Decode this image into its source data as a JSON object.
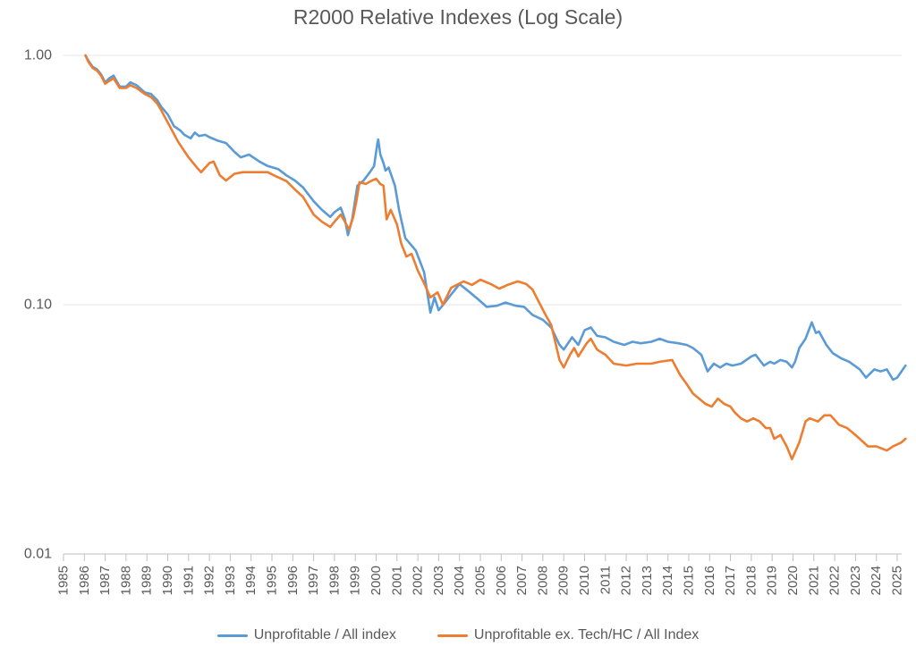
{
  "chart_data": {
    "type": "line",
    "title": "R2000 Relative Indexes (Log Scale)",
    "y_scale": "log",
    "ylim": [
      0.01,
      1.0
    ],
    "xlim": [
      1985,
      2025
    ],
    "grid": "horizontal",
    "legend_position": "bottom",
    "text_color": "#595959",
    "gridline_color": "#E4E6E8",
    "axis_color": "#BFBFBF",
    "y_ticks": [
      {
        "label": "1.00",
        "value": 1.0
      },
      {
        "label": "0.10",
        "value": 0.1
      },
      {
        "label": "0.01",
        "value": 0.01
      }
    ],
    "x_ticks": [
      "1985",
      "1986",
      "1987",
      "1988",
      "1989",
      "1990",
      "1991",
      "1992",
      "1993",
      "1994",
      "1995",
      "1996",
      "1997",
      "1998",
      "1999",
      "2000",
      "2001",
      "2002",
      "2003",
      "2004",
      "2005",
      "2006",
      "2007",
      "2008",
      "2009",
      "2010",
      "2011",
      "2012",
      "2013",
      "2014",
      "2015",
      "2016",
      "2017",
      "2018",
      "2019",
      "2020",
      "2021",
      "2022",
      "2023",
      "2024",
      "2025"
    ],
    "series": [
      {
        "name": "Unprofitable / All index",
        "color": "#5B9BD5",
        "points": [
          [
            1986.05,
            1.0
          ],
          [
            1986.2,
            0.95
          ],
          [
            1986.4,
            0.9
          ],
          [
            1986.6,
            0.88
          ],
          [
            1986.8,
            0.84
          ],
          [
            1987.0,
            0.78
          ],
          [
            1987.2,
            0.81
          ],
          [
            1987.4,
            0.83
          ],
          [
            1987.7,
            0.75
          ],
          [
            1988.0,
            0.75
          ],
          [
            1988.2,
            0.78
          ],
          [
            1988.5,
            0.76
          ],
          [
            1988.9,
            0.71
          ],
          [
            1989.2,
            0.7
          ],
          [
            1989.5,
            0.66
          ],
          [
            1989.7,
            0.62
          ],
          [
            1990.0,
            0.58
          ],
          [
            1990.3,
            0.52
          ],
          [
            1990.6,
            0.5
          ],
          [
            1990.8,
            0.48
          ],
          [
            1991.1,
            0.465
          ],
          [
            1991.3,
            0.49
          ],
          [
            1991.5,
            0.475
          ],
          [
            1991.8,
            0.48
          ],
          [
            1992.0,
            0.47
          ],
          [
            1992.4,
            0.455
          ],
          [
            1992.8,
            0.445
          ],
          [
            1993.2,
            0.41
          ],
          [
            1993.5,
            0.39
          ],
          [
            1993.9,
            0.4
          ],
          [
            1994.4,
            0.375
          ],
          [
            1994.8,
            0.36
          ],
          [
            1995.3,
            0.35
          ],
          [
            1995.7,
            0.33
          ],
          [
            1996.1,
            0.315
          ],
          [
            1996.5,
            0.295
          ],
          [
            1997.0,
            0.26
          ],
          [
            1997.4,
            0.24
          ],
          [
            1997.8,
            0.225
          ],
          [
            1998.0,
            0.235
          ],
          [
            1998.3,
            0.245
          ],
          [
            1998.5,
            0.22
          ],
          [
            1998.65,
            0.19
          ],
          [
            1998.85,
            0.22
          ],
          [
            1999.1,
            0.3
          ],
          [
            1999.4,
            0.315
          ],
          [
            1999.7,
            0.34
          ],
          [
            1999.9,
            0.36
          ],
          [
            2000.05,
            0.44
          ],
          [
            2000.1,
            0.46
          ],
          [
            2000.2,
            0.4
          ],
          [
            2000.35,
            0.37
          ],
          [
            2000.45,
            0.345
          ],
          [
            2000.6,
            0.355
          ],
          [
            2000.9,
            0.3
          ],
          [
            2001.1,
            0.24
          ],
          [
            2001.4,
            0.185
          ],
          [
            2001.9,
            0.165
          ],
          [
            2002.3,
            0.135
          ],
          [
            2002.6,
            0.093
          ],
          [
            2002.8,
            0.107
          ],
          [
            2003.0,
            0.095
          ],
          [
            2003.3,
            0.102
          ],
          [
            2003.6,
            0.11
          ],
          [
            2004.0,
            0.121
          ],
          [
            2004.5,
            0.112
          ],
          [
            2004.9,
            0.105
          ],
          [
            2005.3,
            0.098
          ],
          [
            2005.8,
            0.099
          ],
          [
            2006.2,
            0.102
          ],
          [
            2006.7,
            0.099
          ],
          [
            2007.1,
            0.098
          ],
          [
            2007.5,
            0.091
          ],
          [
            2008.0,
            0.087
          ],
          [
            2008.4,
            0.081
          ],
          [
            2008.8,
            0.069
          ],
          [
            2009.0,
            0.066
          ],
          [
            2009.4,
            0.074
          ],
          [
            2009.7,
            0.069
          ],
          [
            2010.0,
            0.079
          ],
          [
            2010.3,
            0.081
          ],
          [
            2010.6,
            0.075
          ],
          [
            2011.0,
            0.074
          ],
          [
            2011.4,
            0.071
          ],
          [
            2011.9,
            0.069
          ],
          [
            2012.3,
            0.071
          ],
          [
            2012.7,
            0.07
          ],
          [
            2013.2,
            0.071
          ],
          [
            2013.6,
            0.073
          ],
          [
            2014.0,
            0.071
          ],
          [
            2014.5,
            0.07
          ],
          [
            2014.9,
            0.069
          ],
          [
            2015.2,
            0.067
          ],
          [
            2015.6,
            0.063
          ],
          [
            2015.9,
            0.054
          ],
          [
            2016.2,
            0.058
          ],
          [
            2016.5,
            0.056
          ],
          [
            2016.8,
            0.058
          ],
          [
            2017.1,
            0.057
          ],
          [
            2017.5,
            0.058
          ],
          [
            2018.0,
            0.062
          ],
          [
            2018.2,
            0.063
          ],
          [
            2018.6,
            0.057
          ],
          [
            2018.9,
            0.059
          ],
          [
            2019.1,
            0.058
          ],
          [
            2019.4,
            0.06
          ],
          [
            2019.7,
            0.059
          ],
          [
            2019.95,
            0.056
          ],
          [
            2020.1,
            0.059
          ],
          [
            2020.3,
            0.067
          ],
          [
            2020.6,
            0.073
          ],
          [
            2020.9,
            0.085
          ],
          [
            2021.1,
            0.077
          ],
          [
            2021.25,
            0.078
          ],
          [
            2021.6,
            0.069
          ],
          [
            2021.9,
            0.064
          ],
          [
            2022.3,
            0.061
          ],
          [
            2022.7,
            0.059
          ],
          [
            2023.2,
            0.055
          ],
          [
            2023.5,
            0.051
          ],
          [
            2023.9,
            0.055
          ],
          [
            2024.2,
            0.054
          ],
          [
            2024.5,
            0.055
          ],
          [
            2024.8,
            0.05
          ],
          [
            2025.0,
            0.051
          ],
          [
            2025.4,
            0.057
          ]
        ]
      },
      {
        "name": "Unprofitable ex. Tech/HC / All Index",
        "color": "#ED7D31",
        "points": [
          [
            1986.05,
            1.0
          ],
          [
            1986.2,
            0.94
          ],
          [
            1986.4,
            0.89
          ],
          [
            1986.6,
            0.87
          ],
          [
            1986.8,
            0.83
          ],
          [
            1987.0,
            0.77
          ],
          [
            1987.2,
            0.79
          ],
          [
            1987.4,
            0.81
          ],
          [
            1987.7,
            0.74
          ],
          [
            1988.0,
            0.74
          ],
          [
            1988.2,
            0.76
          ],
          [
            1988.5,
            0.74
          ],
          [
            1988.9,
            0.7
          ],
          [
            1989.2,
            0.68
          ],
          [
            1989.5,
            0.64
          ],
          [
            1989.7,
            0.6
          ],
          [
            1990.1,
            0.52
          ],
          [
            1990.5,
            0.45
          ],
          [
            1991.0,
            0.39
          ],
          [
            1991.4,
            0.355
          ],
          [
            1991.6,
            0.34
          ],
          [
            1992.0,
            0.37
          ],
          [
            1992.2,
            0.375
          ],
          [
            1992.5,
            0.33
          ],
          [
            1992.8,
            0.315
          ],
          [
            1993.2,
            0.335
          ],
          [
            1993.6,
            0.34
          ],
          [
            1994.0,
            0.34
          ],
          [
            1994.4,
            0.34
          ],
          [
            1994.8,
            0.34
          ],
          [
            1995.1,
            0.33
          ],
          [
            1995.7,
            0.313
          ],
          [
            1996.1,
            0.29
          ],
          [
            1996.5,
            0.27
          ],
          [
            1997.0,
            0.23
          ],
          [
            1997.4,
            0.215
          ],
          [
            1997.8,
            0.205
          ],
          [
            1998.0,
            0.215
          ],
          [
            1998.3,
            0.23
          ],
          [
            1998.5,
            0.215
          ],
          [
            1998.7,
            0.2
          ],
          [
            1998.9,
            0.225
          ],
          [
            1999.05,
            0.26
          ],
          [
            1999.2,
            0.31
          ],
          [
            1999.5,
            0.305
          ],
          [
            1999.8,
            0.315
          ],
          [
            2000.0,
            0.32
          ],
          [
            2000.2,
            0.305
          ],
          [
            2000.35,
            0.3
          ],
          [
            2000.5,
            0.22
          ],
          [
            2000.7,
            0.24
          ],
          [
            2001.0,
            0.21
          ],
          [
            2001.2,
            0.176
          ],
          [
            2001.45,
            0.156
          ],
          [
            2001.7,
            0.16
          ],
          [
            2002.0,
            0.137
          ],
          [
            2002.3,
            0.122
          ],
          [
            2002.6,
            0.107
          ],
          [
            2002.95,
            0.112
          ],
          [
            2003.2,
            0.1
          ],
          [
            2003.6,
            0.117
          ],
          [
            2004.2,
            0.124
          ],
          [
            2004.6,
            0.12
          ],
          [
            2005.0,
            0.126
          ],
          [
            2005.5,
            0.121
          ],
          [
            2005.9,
            0.116
          ],
          [
            2006.3,
            0.12
          ],
          [
            2006.8,
            0.124
          ],
          [
            2007.2,
            0.121
          ],
          [
            2007.5,
            0.115
          ],
          [
            2008.1,
            0.092
          ],
          [
            2008.4,
            0.083
          ],
          [
            2008.8,
            0.06
          ],
          [
            2009.0,
            0.056
          ],
          [
            2009.3,
            0.063
          ],
          [
            2009.5,
            0.067
          ],
          [
            2009.7,
            0.062
          ],
          [
            2010.1,
            0.07
          ],
          [
            2010.3,
            0.073
          ],
          [
            2010.6,
            0.066
          ],
          [
            2011.0,
            0.063
          ],
          [
            2011.4,
            0.058
          ],
          [
            2012.0,
            0.057
          ],
          [
            2012.5,
            0.058
          ],
          [
            2013.2,
            0.058
          ],
          [
            2013.6,
            0.059
          ],
          [
            2014.2,
            0.06
          ],
          [
            2014.6,
            0.052
          ],
          [
            2014.9,
            0.048
          ],
          [
            2015.2,
            0.044
          ],
          [
            2015.5,
            0.042
          ],
          [
            2015.8,
            0.04
          ],
          [
            2016.1,
            0.039
          ],
          [
            2016.4,
            0.042
          ],
          [
            2016.7,
            0.04
          ],
          [
            2017.0,
            0.039
          ],
          [
            2017.2,
            0.037
          ],
          [
            2017.5,
            0.035
          ],
          [
            2017.8,
            0.034
          ],
          [
            2018.1,
            0.035
          ],
          [
            2018.4,
            0.034
          ],
          [
            2018.7,
            0.032
          ],
          [
            2018.9,
            0.032
          ],
          [
            2019.1,
            0.029
          ],
          [
            2019.4,
            0.03
          ],
          [
            2019.7,
            0.027
          ],
          [
            2019.95,
            0.024
          ],
          [
            2020.3,
            0.028
          ],
          [
            2020.6,
            0.034
          ],
          [
            2020.8,
            0.035
          ],
          [
            2021.2,
            0.034
          ],
          [
            2021.5,
            0.036
          ],
          [
            2021.8,
            0.036
          ],
          [
            2022.2,
            0.033
          ],
          [
            2022.6,
            0.032
          ],
          [
            2023.0,
            0.03
          ],
          [
            2023.6,
            0.027
          ],
          [
            2024.0,
            0.027
          ],
          [
            2024.5,
            0.026
          ],
          [
            2024.8,
            0.027
          ],
          [
            2025.2,
            0.028
          ],
          [
            2025.4,
            0.029
          ]
        ]
      }
    ]
  }
}
